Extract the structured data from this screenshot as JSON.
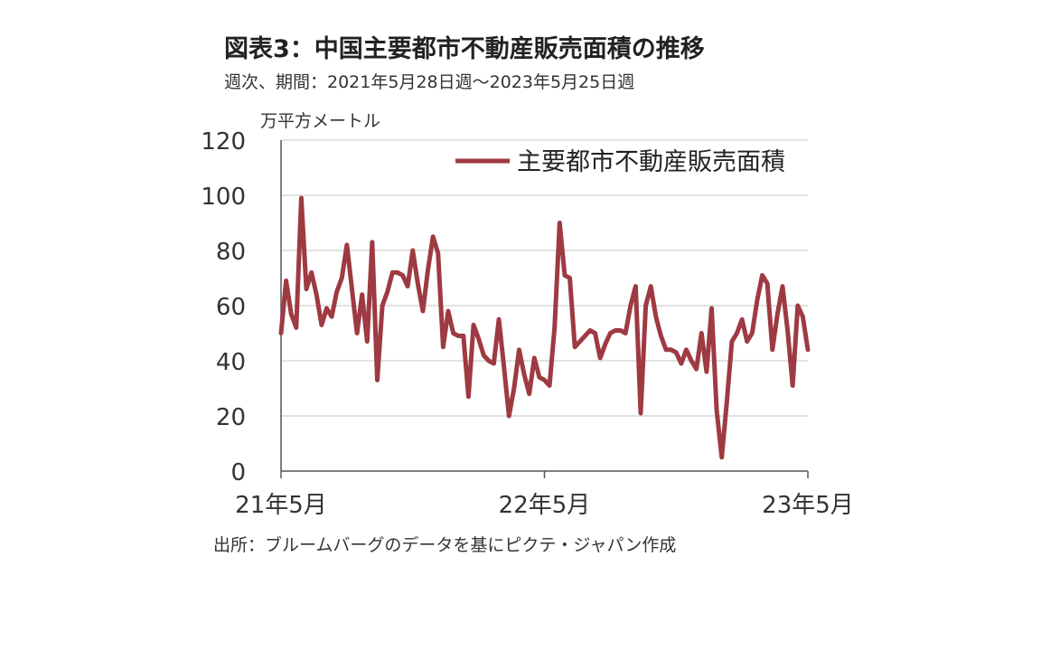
{
  "title": "図表3：中国主要都市不動産販売面積の推移",
  "subtitle": "週次、期間：2021年5月28日週～2023年5月25日週",
  "source": "出所：ブルームバーグのデータを基にピクテ・ジャパン作成",
  "colors": {
    "series": "#9e3a42",
    "axis": "#555555",
    "grid": "#d9d9d9"
  },
  "chart_data": {
    "type": "line",
    "unit_label": "万平方メートル",
    "ylim": [
      0,
      120
    ],
    "yticks": [
      0,
      20,
      40,
      60,
      80,
      100,
      120
    ],
    "xlim": [
      0,
      104
    ],
    "xticks": [
      {
        "pos": 0,
        "label": "21年5月"
      },
      {
        "pos": 52,
        "label": "22年5月"
      },
      {
        "pos": 104,
        "label": "23年5月"
      }
    ],
    "grid": "horizontal",
    "legend": "top-right",
    "series": [
      {
        "name": "主要都市不動産販売面積",
        "values": [
          50,
          69,
          57,
          52,
          99,
          66,
          72,
          64,
          53,
          59,
          56,
          65,
          70,
          82,
          66,
          50,
          64,
          47,
          83,
          33,
          60,
          65,
          72,
          72,
          71,
          67,
          80,
          68,
          58,
          73,
          85,
          79,
          45,
          58,
          50,
          49,
          49,
          27,
          53,
          48,
          42,
          40,
          39,
          55,
          38,
          20,
          30,
          44,
          35,
          28,
          41,
          34,
          33,
          31,
          52,
          90,
          71,
          70,
          45,
          47,
          49,
          51,
          50,
          41,
          46,
          50,
          51,
          51,
          50,
          60,
          67,
          21,
          60,
          67,
          56,
          49,
          44,
          44,
          43,
          39,
          44,
          40,
          37,
          50,
          36,
          59,
          22,
          5,
          25,
          47,
          50,
          55,
          47,
          50,
          62,
          71,
          68,
          44,
          57,
          67,
          51,
          31,
          60,
          56,
          44
        ]
      }
    ]
  }
}
